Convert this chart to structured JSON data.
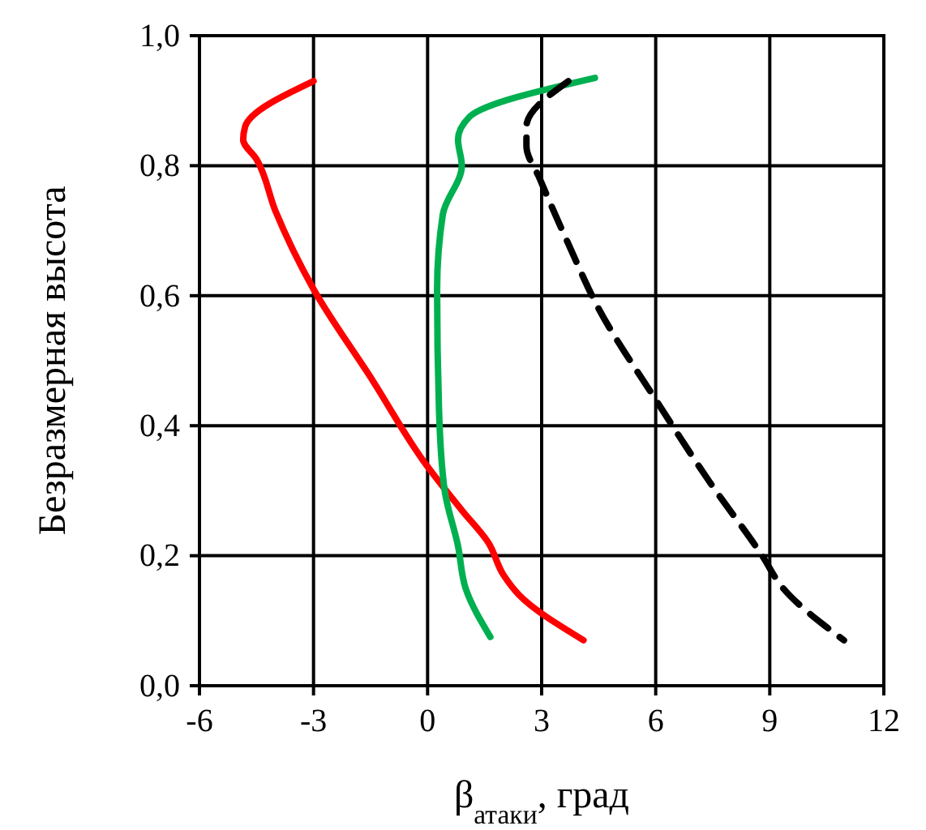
{
  "chart_data": {
    "type": "line",
    "xlabel": "β$_{атаки}$, град",
    "ylabel": "Безразмерная высота",
    "xlim": [
      -6,
      12
    ],
    "xticks": [
      -6,
      -3,
      0,
      3,
      6,
      9,
      12
    ],
    "ylim": [
      0,
      1
    ],
    "yticks": [
      {
        "value": 0,
        "label": "0,0"
      },
      {
        "value": 0.2,
        "label": "0,2"
      },
      {
        "value": 0.4,
        "label": "0,4"
      },
      {
        "value": 0.6,
        "label": "0,6"
      },
      {
        "value": 0.8,
        "label": "0,8"
      },
      {
        "value": 1,
        "label": "1,0"
      }
    ],
    "grid": true,
    "marker": "none",
    "series": [
      {
        "color": "#ff0000",
        "line_style": "solid",
        "x": [
          -3,
          -4.8,
          -4.85,
          -4.5,
          -4.0,
          -3.0,
          -1.45,
          -0.1,
          0.9,
          1.6,
          2.0,
          2.4,
          4.1
        ],
        "values": [
          0.93,
          0.86,
          0.84,
          0.81,
          0.73,
          0.61,
          0.47,
          0.345,
          0.27,
          0.22,
          0.17,
          0.14,
          0.07
        ]
      },
      {
        "color": "#00b050",
        "line_style": "solid",
        "x": [
          4.4,
          1.1,
          0.8,
          0.9,
          0.4,
          0.25,
          0.3,
          0.45,
          0.8,
          1.0,
          1.65
        ],
        "values": [
          0.935,
          0.875,
          0.84,
          0.8,
          0.725,
          0.61,
          0.425,
          0.3,
          0.215,
          0.15,
          0.075
        ]
      },
      {
        "color": "#000000",
        "line_style": "dashed",
        "x": [
          3.7,
          2.6,
          2.6,
          2.95,
          3.7,
          4.5,
          6.0,
          7.4,
          8.8,
          9.35,
          10.95
        ],
        "values": [
          0.93,
          0.86,
          0.83,
          0.78,
          0.68,
          0.58,
          0.44,
          0.315,
          0.2,
          0.15,
          0.07
        ]
      }
    ]
  }
}
